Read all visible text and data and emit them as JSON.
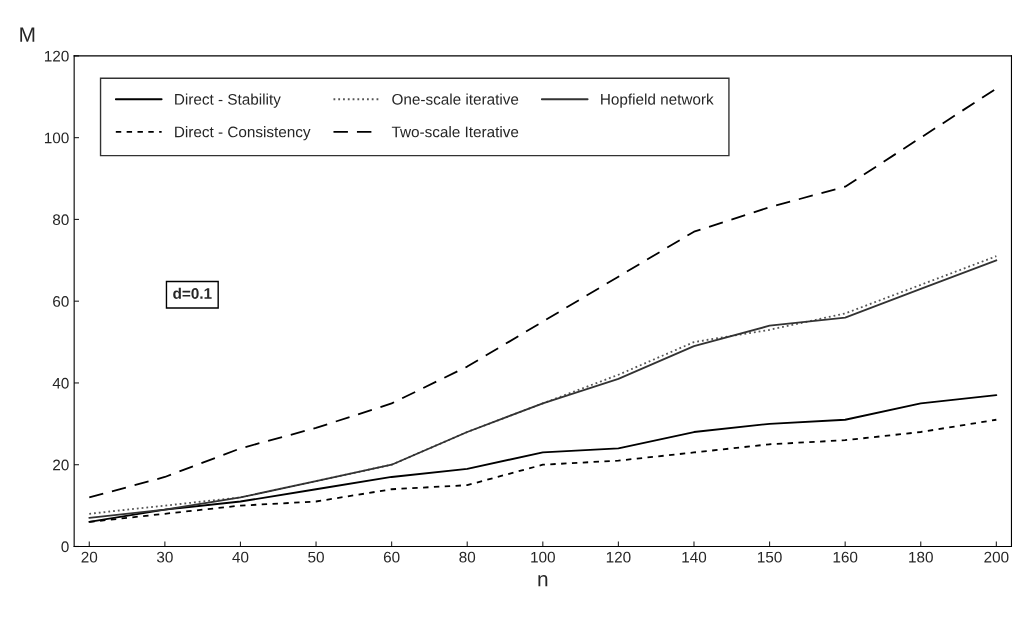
{
  "chart_data": {
    "type": "line",
    "xlabel": "n",
    "ylabel": "M",
    "categories": [
      "20",
      "30",
      "40",
      "50",
      "60",
      "80",
      "100",
      "120",
      "140",
      "150",
      "160",
      "180",
      "200"
    ],
    "series": [
      {
        "name": "Direct - Stability",
        "color": "#000000",
        "line_style": "solid",
        "values": [
          6,
          9,
          11,
          14,
          17,
          19,
          23,
          24,
          28,
          30,
          31,
          35,
          37
        ]
      },
      {
        "name": "Direct - Consistency",
        "color": "#000000",
        "line_style": "dashed",
        "values": [
          6,
          8,
          10,
          11,
          14,
          15,
          20,
          21,
          23,
          25,
          26,
          28,
          31
        ]
      },
      {
        "name": "One-scale iterative",
        "color": "#555555",
        "line_style": "dotted",
        "values": [
          8,
          10,
          12,
          16,
          20,
          28,
          35,
          42,
          50,
          53,
          57,
          64,
          71
        ]
      },
      {
        "name": "Two-scale Iterative",
        "color": "#000000",
        "line_style": "dashed",
        "values": [
          12,
          17,
          24,
          29,
          35,
          44,
          55,
          66,
          77,
          83,
          88,
          100,
          112
        ]
      },
      {
        "name": "Hopfield network",
        "color": "#333333",
        "line_style": "solid",
        "values": [
          7,
          9,
          12,
          16,
          20,
          28,
          35,
          41,
          49,
          54,
          56,
          63,
          70
        ]
      }
    ],
    "ylim": [
      0,
      120
    ],
    "yticks": [
      0,
      20,
      40,
      60,
      80,
      100,
      120
    ],
    "annotations": [
      "d=0.1"
    ],
    "legend": "top left",
    "grid": false,
    "marker": "none"
  }
}
